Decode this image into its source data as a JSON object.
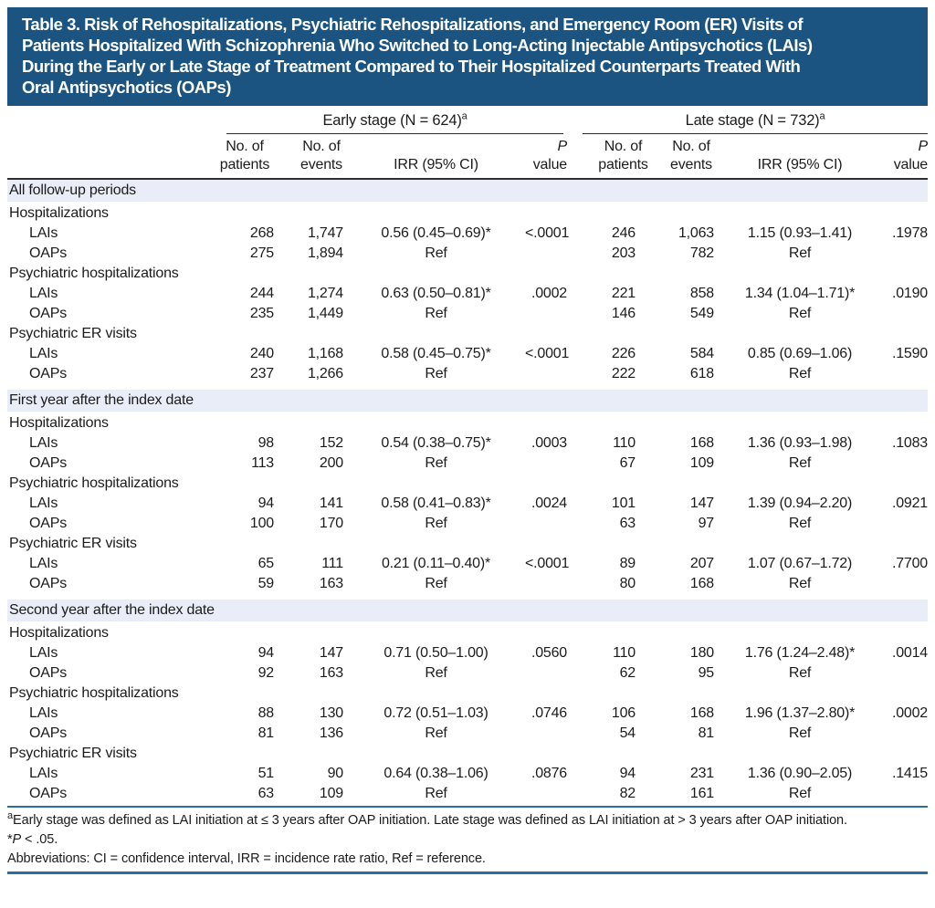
{
  "title_lines": [
    "Table 3. Risk of Rehospitalizations, Psychiatric Rehospitalizations, and Emergency Room (ER) Visits of",
    "Patients Hospitalized With Schizophrenia Who Switched to Long-Acting Injectable Antipsychotics (LAIs)",
    "During the Early or Late Stage of Treatment Compared to Their Hospitalized Counterparts Treated With",
    "Oral Antipsychotics (OAPs)"
  ],
  "table": {
    "groups": [
      {
        "label": "Early stage (N = 624)",
        "sup": "a"
      },
      {
        "label": "Late stage (N = 732)",
        "sup": "a"
      }
    ],
    "columns": {
      "patients": {
        "line1": "No. of",
        "line2": "patients"
      },
      "events": {
        "line1": "No. of",
        "line2": "events"
      },
      "irr": "IRR (95% CI)",
      "p": {
        "italic": "P",
        "rest": " value"
      }
    },
    "sections": [
      {
        "name": "All follow-up periods",
        "outcomes": [
          {
            "name": "Hospitalizations",
            "rows": [
              {
                "label": "LAIs",
                "early": {
                  "patients": "268",
                  "events": "1,747",
                  "irr": "0.56 (0.45–0.69)*",
                  "p": "<.0001"
                },
                "late": {
                  "patients": "246",
                  "events": "1,063",
                  "irr": "1.15 (0.93–1.41)",
                  "p": ".1978"
                }
              },
              {
                "label": "OAPs",
                "early": {
                  "patients": "275",
                  "events": "1,894",
                  "irr": "Ref",
                  "p": ""
                },
                "late": {
                  "patients": "203",
                  "events": "782",
                  "irr": "Ref",
                  "p": ""
                }
              }
            ]
          },
          {
            "name": "Psychiatric hospitalizations",
            "rows": [
              {
                "label": "LAIs",
                "early": {
                  "patients": "244",
                  "events": "1,274",
                  "irr": "0.63 (0.50–0.81)*",
                  "p": ".0002"
                },
                "late": {
                  "patients": "221",
                  "events": "858",
                  "irr": "1.34 (1.04–1.71)*",
                  "p": ".0190"
                }
              },
              {
                "label": "OAPs",
                "early": {
                  "patients": "235",
                  "events": "1,449",
                  "irr": "Ref",
                  "p": ""
                },
                "late": {
                  "patients": "146",
                  "events": "549",
                  "irr": "Ref",
                  "p": ""
                }
              }
            ]
          },
          {
            "name": "Psychiatric ER visits",
            "rows": [
              {
                "label": "LAIs",
                "early": {
                  "patients": "240",
                  "events": "1,168",
                  "irr": "0.58 (0.45–0.75)*",
                  "p": "<.0001"
                },
                "late": {
                  "patients": "226",
                  "events": "584",
                  "irr": "0.85 (0.69–1.06)",
                  "p": ".1590"
                }
              },
              {
                "label": "OAPs",
                "early": {
                  "patients": "237",
                  "events": "1,266",
                  "irr": "Ref",
                  "p": ""
                },
                "late": {
                  "patients": "222",
                  "events": "618",
                  "irr": "Ref",
                  "p": ""
                }
              }
            ]
          }
        ]
      },
      {
        "name": "First year after the index date",
        "outcomes": [
          {
            "name": "Hospitalizations",
            "rows": [
              {
                "label": "LAIs",
                "early": {
                  "patients": "98",
                  "events": "152",
                  "irr": "0.54 (0.38–0.75)*",
                  "p": ".0003"
                },
                "late": {
                  "patients": "110",
                  "events": "168",
                  "irr": "1.36 (0.93–1.98)",
                  "p": ".1083"
                }
              },
              {
                "label": "OAPs",
                "early": {
                  "patients": "113",
                  "events": "200",
                  "irr": "Ref",
                  "p": ""
                },
                "late": {
                  "patients": "67",
                  "events": "109",
                  "irr": "Ref",
                  "p": ""
                }
              }
            ]
          },
          {
            "name": "Psychiatric hospitalizations",
            "rows": [
              {
                "label": "LAIs",
                "early": {
                  "patients": "94",
                  "events": "141",
                  "irr": "0.58 (0.41–0.83)*",
                  "p": ".0024"
                },
                "late": {
                  "patients": "101",
                  "events": "147",
                  "irr": "1.39 (0.94–2.20)",
                  "p": ".0921"
                }
              },
              {
                "label": "OAPs",
                "early": {
                  "patients": "100",
                  "events": "170",
                  "irr": "Ref",
                  "p": ""
                },
                "late": {
                  "patients": "63",
                  "events": "97",
                  "irr": "Ref",
                  "p": ""
                }
              }
            ]
          },
          {
            "name": "Psychiatric ER visits",
            "rows": [
              {
                "label": "LAIs",
                "early": {
                  "patients": "65",
                  "events": "111",
                  "irr": "0.21 (0.11–0.40)*",
                  "p": "<.0001"
                },
                "late": {
                  "patients": "89",
                  "events": "207",
                  "irr": "1.07 (0.67–1.72)",
                  "p": ".7700"
                }
              },
              {
                "label": "OAPs",
                "early": {
                  "patients": "59",
                  "events": "163",
                  "irr": "Ref",
                  "p": ""
                },
                "late": {
                  "patients": "80",
                  "events": "168",
                  "irr": "Ref",
                  "p": ""
                }
              }
            ]
          }
        ]
      },
      {
        "name": "Second year after the index date",
        "outcomes": [
          {
            "name": "Hospitalizations",
            "rows": [
              {
                "label": "LAIs",
                "early": {
                  "patients": "94",
                  "events": "147",
                  "irr": "0.71 (0.50–1.00)",
                  "p": ".0560"
                },
                "late": {
                  "patients": "110",
                  "events": "180",
                  "irr": "1.76 (1.24–2.48)*",
                  "p": ".0014"
                }
              },
              {
                "label": "OAPs",
                "early": {
                  "patients": "92",
                  "events": "163",
                  "irr": "Ref",
                  "p": ""
                },
                "late": {
                  "patients": "62",
                  "events": "95",
                  "irr": "Ref",
                  "p": ""
                }
              }
            ]
          },
          {
            "name": "Psychiatric hospitalizations",
            "rows": [
              {
                "label": "LAIs",
                "early": {
                  "patients": "88",
                  "events": "130",
                  "irr": "0.72 (0.51–1.03)",
                  "p": ".0746"
                },
                "late": {
                  "patients": "106",
                  "events": "168",
                  "irr": "1.96 (1.37–2.80)*",
                  "p": ".0002"
                }
              },
              {
                "label": "OAPs",
                "early": {
                  "patients": "81",
                  "events": "136",
                  "irr": "Ref",
                  "p": ""
                },
                "late": {
                  "patients": "54",
                  "events": "81",
                  "irr": "Ref",
                  "p": ""
                }
              }
            ]
          },
          {
            "name": "Psychiatric ER visits",
            "rows": [
              {
                "label": "LAIs",
                "early": {
                  "patients": "51",
                  "events": "90",
                  "irr": "0.64 (0.38–1.06)",
                  "p": ".0876"
                },
                "late": {
                  "patients": "94",
                  "events": "231",
                  "irr": "1.36 (0.90–2.05)",
                  "p": ".1415"
                }
              },
              {
                "label": "OAPs",
                "early": {
                  "patients": "63",
                  "events": "109",
                  "irr": "Ref",
                  "p": ""
                },
                "late": {
                  "patients": "82",
                  "events": "161",
                  "irr": "Ref",
                  "p": ""
                }
              }
            ]
          }
        ]
      }
    ]
  },
  "footnotes": {
    "a": {
      "sup": "a",
      "text": "Early stage was defined as LAI initiation at ≤ 3 years after OAP initiation. Late stage was defined as LAI initiation at > 3 years after OAP initiation."
    },
    "significance": {
      "prefix": "*",
      "italic": "P",
      "rest": " < .05."
    },
    "abbreviations": "Abbreviations: CI = confidence interval, IRR = incidence rate ratio, Ref = reference."
  },
  "colors": {
    "title_bar_background": "#1b5481",
    "section_band_background": "#e9edf8",
    "blue_rule": "#2e6da4",
    "header_rule": "#2f2f2f"
  }
}
